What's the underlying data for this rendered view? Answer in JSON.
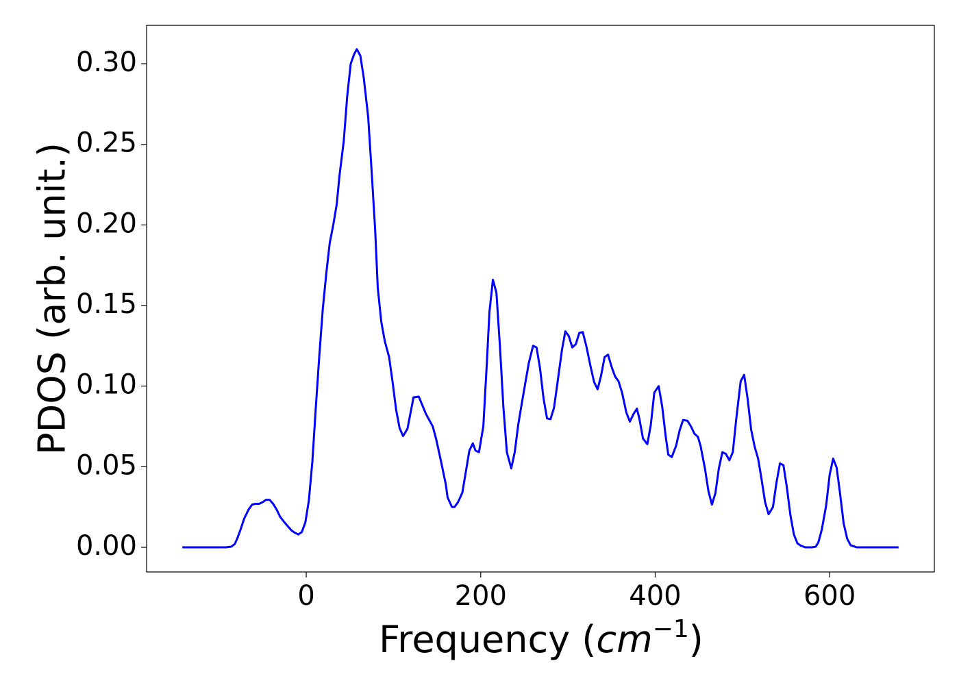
{
  "chart_data": {
    "type": "line",
    "ylabel": "PDOS (arb. unit.)",
    "xlabel": [
      "Frequency (",
      "cm",
      "−1",
      ")"
    ],
    "color": "#0000ff",
    "xlim": [
      -183,
      720
    ],
    "ylim": [
      -0.0153,
      0.3238
    ],
    "xticks": [
      0,
      200,
      400,
      600
    ],
    "yticks": [
      {
        "value": 0,
        "label": "0.00"
      },
      {
        "value": 0.05,
        "label": "0.05"
      },
      {
        "value": 0.1,
        "label": "0.10"
      },
      {
        "value": 0.15,
        "label": "0.15"
      },
      {
        "value": 0.2,
        "label": "0.20"
      },
      {
        "value": 0.25,
        "label": "0.25"
      },
      {
        "value": 0.3,
        "label": "0.30"
      }
    ],
    "x": [
      -142,
      -92,
      -86,
      -82,
      -79,
      -75,
      -71,
      -66,
      -62,
      -58,
      -54,
      -50,
      -46,
      -42,
      -38,
      -34,
      -30,
      -25,
      -21,
      -17,
      -13,
      -9,
      -5,
      -1,
      3,
      7,
      11,
      15,
      19,
      23,
      27,
      31,
      35,
      38,
      43,
      47,
      51,
      55,
      58,
      62,
      66,
      71,
      75,
      79,
      82,
      86,
      90,
      95,
      99,
      103,
      107,
      111,
      116,
      123,
      129,
      137,
      145,
      149,
      155,
      160,
      162,
      167,
      170,
      174,
      179,
      183,
      187,
      191,
      194,
      198,
      203,
      207,
      210,
      214,
      218,
      222,
      226,
      230,
      235,
      239,
      243,
      247,
      251,
      255,
      260,
      264,
      268,
      272,
      276,
      280,
      284,
      288,
      293,
      297,
      301,
      305,
      309,
      313,
      317,
      321,
      326,
      330,
      334,
      338,
      342,
      346,
      350,
      354,
      358,
      362,
      367,
      371,
      375,
      379,
      382,
      386,
      391,
      395,
      399,
      404,
      408,
      412,
      415,
      419,
      424,
      428,
      432,
      437,
      441,
      445,
      449,
      452,
      457,
      461,
      465,
      469,
      473,
      477,
      481,
      485,
      489,
      493,
      498,
      502,
      506,
      510,
      514,
      518,
      522,
      526,
      530,
      535,
      539,
      543,
      547,
      551,
      555,
      559,
      563,
      567,
      572,
      580,
      584,
      587,
      591,
      596,
      600,
      604,
      608,
      612,
      616,
      620,
      624,
      631,
      679
    ],
    "values": [
      0,
      0,
      0.0004,
      0.002,
      0.0055,
      0.0115,
      0.018,
      0.0235,
      0.0265,
      0.027,
      0.027,
      0.028,
      0.0295,
      0.0295,
      0.027,
      0.0235,
      0.019,
      0.0155,
      0.013,
      0.0105,
      0.009,
      0.008,
      0.0095,
      0.0155,
      0.029,
      0.053,
      0.087,
      0.119,
      0.148,
      0.17,
      0.189,
      0.2,
      0.213,
      0.23,
      0.252,
      0.28,
      0.3,
      0.306,
      0.309,
      0.305,
      0.291,
      0.267,
      0.233,
      0.197,
      0.161,
      0.14,
      0.128,
      0.118,
      0.1025,
      0.0855,
      0.074,
      0.069,
      0.0735,
      0.093,
      0.0935,
      0.083,
      0.075,
      0.067,
      0.052,
      0.039,
      0.031,
      0.025,
      0.025,
      0.028,
      0.034,
      0.047,
      0.06,
      0.0645,
      0.06,
      0.059,
      0.075,
      0.114,
      0.146,
      0.166,
      0.158,
      0.125,
      0.087,
      0.059,
      0.049,
      0.059,
      0.076,
      0.089,
      0.1015,
      0.114,
      0.125,
      0.124,
      0.111,
      0.0925,
      0.08,
      0.0795,
      0.0865,
      0.102,
      0.122,
      0.134,
      0.131,
      0.124,
      0.126,
      0.133,
      0.1335,
      0.125,
      0.112,
      0.1025,
      0.098,
      0.1065,
      0.118,
      0.1195,
      0.112,
      0.106,
      0.103,
      0.096,
      0.0835,
      0.078,
      0.0825,
      0.086,
      0.0795,
      0.0675,
      0.064,
      0.076,
      0.096,
      0.1,
      0.0875,
      0.069,
      0.0575,
      0.056,
      0.063,
      0.0725,
      0.079,
      0.0785,
      0.075,
      0.0705,
      0.0685,
      0.063,
      0.049,
      0.035,
      0.0265,
      0.0335,
      0.049,
      0.059,
      0.058,
      0.054,
      0.059,
      0.08,
      0.103,
      0.107,
      0.092,
      0.073,
      0.0625,
      0.055,
      0.042,
      0.028,
      0.0205,
      0.025,
      0.04,
      0.052,
      0.051,
      0.037,
      0.02,
      0.008,
      0.0025,
      0.001,
      0,
      0,
      0.0004,
      0.003,
      0.011,
      0.026,
      0.045,
      0.055,
      0.0495,
      0.033,
      0.015,
      0.0055,
      0.0013,
      0,
      0
    ]
  }
}
